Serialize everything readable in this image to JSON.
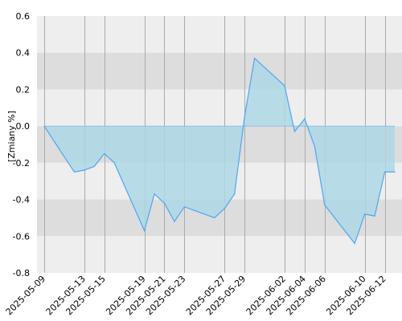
{
  "chart_data": {
    "type": "area",
    "title": "",
    "xlabel": "",
    "ylabel": "[Zmiany %]",
    "ylim": [
      -0.8,
      0.6
    ],
    "yticks": [
      "0.6",
      "0.4",
      "0.2",
      "0.0",
      "-0.2",
      "-0.4",
      "-0.6",
      "-0.8"
    ],
    "ytick_values": [
      0.6,
      0.4,
      0.2,
      0.0,
      -0.2,
      -0.4,
      -0.6,
      -0.8
    ],
    "xticks": [
      "2025-05-09",
      "2025-05-13",
      "2025-05-15",
      "2025-05-19",
      "2025-05-21",
      "2025-05-23",
      "2025-05-27",
      "2025-05-29",
      "2025-06-02",
      "2025-06-04",
      "2025-06-06",
      "2025-06-10",
      "2025-06-12"
    ],
    "x_start": "2025-05-09",
    "x_end": "2025-06-13",
    "grid": true,
    "series": [
      {
        "x": [
          "2025-05-09",
          "2025-05-12",
          "2025-05-13",
          "2025-05-14",
          "2025-05-15",
          "2025-05-16",
          "2025-05-19",
          "2025-05-20",
          "2025-05-21",
          "2025-05-22",
          "2025-05-23",
          "2025-05-26",
          "2025-05-27",
          "2025-05-28",
          "2025-05-29",
          "2025-05-30",
          "2025-06-02",
          "2025-06-03",
          "2025-06-04",
          "2025-06-05",
          "2025-06-06",
          "2025-06-09",
          "2025-06-10",
          "2025-06-11",
          "2025-06-12",
          "2025-06-13"
        ],
        "values": [
          0.0,
          -0.25,
          -0.24,
          -0.22,
          -0.15,
          -0.2,
          -0.57,
          -0.37,
          -0.42,
          -0.52,
          -0.44,
          -0.5,
          -0.45,
          -0.37,
          0.05,
          0.37,
          0.22,
          -0.03,
          0.04,
          -0.11,
          -0.43,
          -0.64,
          -0.48,
          -0.49,
          -0.25,
          -0.25
        ]
      }
    ],
    "colors": {
      "line": "#4da6f0",
      "fill": "#add8e6",
      "band_light": "#eeeeee",
      "band_dark": "#dddddd",
      "grid": "#aaaaaa"
    }
  }
}
